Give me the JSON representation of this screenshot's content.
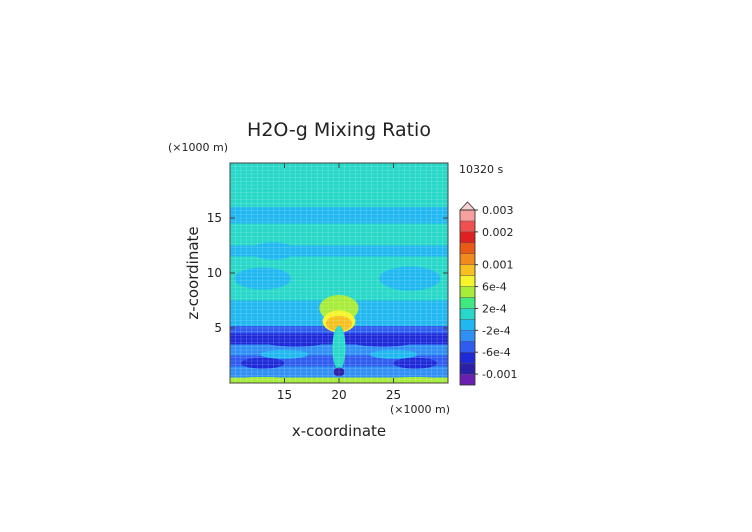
{
  "chart_data": {
    "type": "heatmap",
    "title": "H2O-g Mixing Ratio",
    "time_label": "10320 s",
    "xlabel": "x-coordinate",
    "ylabel": "z-coordinate",
    "x_unit": "(×1000 m)",
    "y_unit": "(×1000 m)",
    "xlim": [
      10,
      30
    ],
    "ylim": [
      0,
      20
    ],
    "x_ticks": [
      "15",
      "20",
      "25"
    ],
    "y_ticks": [
      "5",
      "10",
      "15"
    ],
    "x_tick_values": [
      15,
      20,
      25
    ],
    "y_tick_values": [
      5,
      10,
      15
    ],
    "colorbar": {
      "labels": [
        "0.003",
        "0.002",
        "0.001",
        "6e-4",
        "2e-4",
        "-2e-4",
        "-6e-4",
        "-0.001"
      ],
      "label_values": [
        0.003,
        0.002,
        0.001,
        0.0006,
        0.0002,
        -0.0002,
        -0.0006,
        -0.001
      ],
      "levels": [
        -0.0012,
        -0.001,
        -0.0008,
        -0.0006,
        -0.0004,
        -0.0002,
        0,
        0.0002,
        0.0004,
        0.0006,
        0.0008,
        0.001,
        0.0012,
        0.0015,
        0.002,
        0.0025,
        0.003
      ],
      "colors": [
        "#6a1fb0",
        "#2b1fa8",
        "#1e2ad8",
        "#2f5cf0",
        "#2f8ff5",
        "#20b8f0",
        "#27d8c8",
        "#40e880",
        "#a8ec3a",
        "#f5f52a",
        "#f5c020",
        "#f08a1a",
        "#e85a15",
        "#e02020",
        "#f05050",
        "#f8a0a0"
      ]
    },
    "data_note": "",
    "bands": [
      {
        "z0": 0,
        "z1": 0.5,
        "v": 0.0004
      },
      {
        "z0": 0.5,
        "z1": 1.5,
        "v": -0.0004
      },
      {
        "z0": 1.5,
        "z1": 2.5,
        "v": -0.0006
      },
      {
        "z0": 2.5,
        "z1": 3.5,
        "v": -0.0003
      },
      {
        "z0": 3.5,
        "z1": 4.5,
        "v": -0.0007
      },
      {
        "z0": 4.5,
        "z1": 5.2,
        "v": -0.0005
      },
      {
        "z0": 5.2,
        "z1": 7.5,
        "v": -0.0002
      },
      {
        "z0": 7.5,
        "z1": 9,
        "v": 0.0001
      },
      {
        "z0": 9,
        "z1": 11.5,
        "v": 0.0001
      },
      {
        "z0": 11.5,
        "z1": 12.5,
        "v": -0.0001
      },
      {
        "z0": 12.5,
        "z1": 14.5,
        "v": 0.0001
      },
      {
        "z0": 14.5,
        "z1": 16,
        "v": -0.0001
      },
      {
        "z0": 16,
        "z1": 17.5,
        "v": 0.0001
      },
      {
        "z0": 17.5,
        "z1": 20,
        "v": 0.0001
      }
    ],
    "features": [
      {
        "x": 20,
        "z": 6.8,
        "rx": 1.8,
        "rz": 1.2,
        "v": 0.0004
      },
      {
        "x": 20,
        "z": 5.6,
        "rx": 1.5,
        "rz": 1.0,
        "v": 0.0006
      },
      {
        "x": 20,
        "z": 5.4,
        "rx": 1.2,
        "rz": 0.7,
        "v": 0.0008
      },
      {
        "x": 20,
        "z": 3.2,
        "rx": 0.6,
        "rz": 2.0,
        "v": 0.0001
      },
      {
        "x": 20,
        "z": 1.0,
        "rx": 0.5,
        "rz": 0.4,
        "v": -0.001
      },
      {
        "x": 13,
        "z": 9.5,
        "rx": 2.6,
        "rz": 1.0,
        "v": -0.0002
      },
      {
        "x": 26.5,
        "z": 9.5,
        "rx": 2.8,
        "rz": 1.1,
        "v": -0.0002
      },
      {
        "x": 14,
        "z": 12,
        "rx": 2.0,
        "rz": 0.8,
        "v": -0.0001
      },
      {
        "x": 25,
        "z": 15.2,
        "rx": 2.5,
        "rz": 0.6,
        "v": -0.0001
      },
      {
        "x": 16,
        "z": 3.8,
        "rx": 3.0,
        "rz": 0.5,
        "v": -0.0008
      },
      {
        "x": 24,
        "z": 3.8,
        "rx": 3.0,
        "rz": 0.5,
        "v": -0.0008
      },
      {
        "x": 13,
        "z": 1.8,
        "rx": 2.0,
        "rz": 0.5,
        "v": -0.0007
      },
      {
        "x": 27,
        "z": 1.8,
        "rx": 2.0,
        "rz": 0.5,
        "v": -0.0007
      },
      {
        "x": 15,
        "z": 2.6,
        "rx": 2.2,
        "rz": 0.4,
        "v": -0.0001
      },
      {
        "x": 25,
        "z": 2.6,
        "rx": 2.2,
        "rz": 0.4,
        "v": -0.0001
      },
      {
        "x": 13,
        "z": 0.3,
        "rx": 2.5,
        "rz": 0.25,
        "v": 0.0005
      },
      {
        "x": 27,
        "z": 0.3,
        "rx": 2.5,
        "rz": 0.25,
        "v": 0.0005
      }
    ]
  }
}
